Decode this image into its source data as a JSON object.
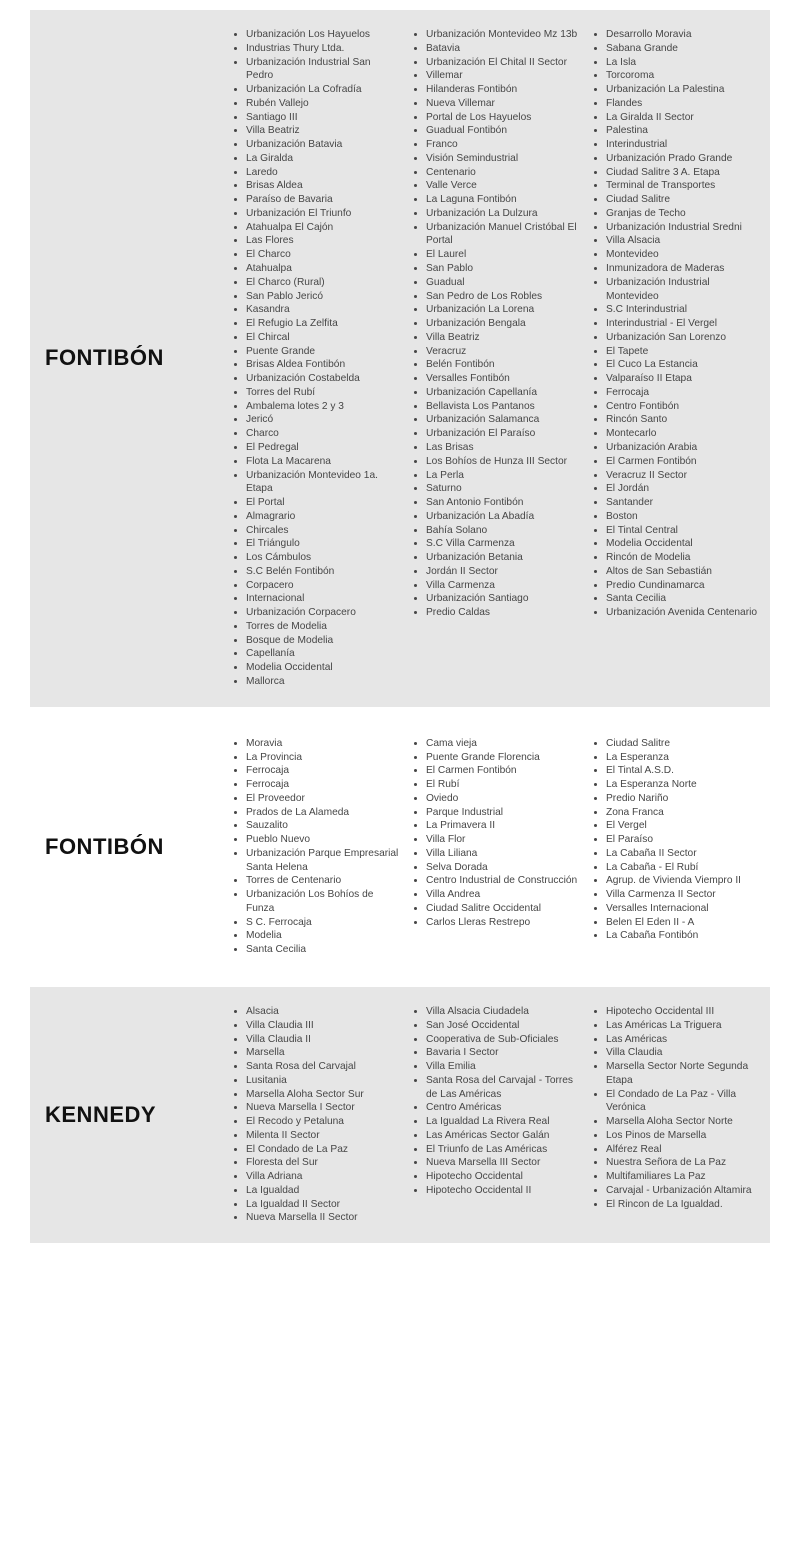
{
  "sections": [
    {
      "title": "FONTIBÓN",
      "shaded": true,
      "columns": [
        [
          "Urbanización Los Hayuelos",
          "Industrias Thury Ltda.",
          "Urbanización Industrial San Pedro",
          "Urbanización La Cofradía",
          "Rubén Vallejo",
          "Santiago III",
          "Villa Beatriz",
          "Urbanización Batavia",
          "La Giralda",
          "Laredo",
          "Brisas Aldea",
          "Paraíso de Bavaria",
          "Urbanización El Triunfo",
          "Atahualpa El Cajón",
          "Las Flores",
          "El Charco",
          "Atahualpa",
          "El Charco (Rural)",
          "San Pablo Jericó",
          "Kasandra",
          "El Refugio La Zelfita",
          "El Chircal",
          "Puente Grande",
          "Brisas Aldea Fontibón",
          "Urbanización Costabelda",
          "Torres del Rubí",
          "Ambalema lotes 2 y 3",
          "Jericó",
          "Charco",
          "El Pedregal",
          "Flota La Macarena",
          "Urbanización Montevideo 1a. Etapa",
          "El Portal",
          "Almagrario",
          "Chircales",
          "El Triángulo",
          "Los Cámbulos",
          "S.C Belén Fontibón",
          "Corpacero",
          "Internacional",
          "Urbanización Corpacero",
          "Torres de Modelia",
          "Bosque de Modelia",
          "Capellanía",
          "Modelia Occidental",
          "Mallorca"
        ],
        [
          "Urbanización Montevideo Mz 13b",
          "Batavia",
          "Urbanización El Chital II Sector",
          "Villemar",
          "Hilanderas Fontibón",
          "Nueva Villemar",
          "Portal de Los Hayuelos",
          "Guadual Fontibón",
          "Franco",
          "Visión Semindustrial",
          "Centenario",
          "Valle Verce",
          "La Laguna Fontibón",
          "Urbanización La Dulzura",
          "Urbanización Manuel Cristóbal El Portal",
          "El Laurel",
          "San Pablo",
          "Guadual",
          "San Pedro de Los Robles",
          "Urbanización La Lorena",
          "Urbanización Bengala",
          "Villa Beatriz",
          "Veracruz",
          "Belén Fontibón",
          "Versalles Fontibón",
          "Urbanización Capellanía",
          "Bellavista Los Pantanos",
          "Urbanización Salamanca",
          "Urbanización El Paraíso",
          "Las Brisas",
          "Los Bohíos de Hunza III Sector",
          "La Perla",
          "Saturno",
          "San Antonio Fontibón",
          "Urbanización La Abadía",
          "Bahía Solano",
          "S.C Villa Carmenza",
          "Urbanización Betania",
          "Jordán II Sector",
          "Villa Carmenza",
          "Urbanización Santiago",
          "Predio Caldas"
        ],
        [
          "Desarrollo Moravia",
          "Sabana Grande",
          "La Isla",
          "Torcoroma",
          "Urbanización La Palestina",
          "Flandes",
          "La Giralda II Sector",
          "Palestina",
          "Interindustrial",
          "Urbanización Prado Grande",
          "Ciudad Salitre 3 A. Etapa",
          "Terminal de Transportes",
          "Ciudad Salitre",
          "Granjas de Techo",
          "Urbanización Industrial Sredni",
          "Villa Alsacia",
          "Montevideo",
          "Inmunizadora de Maderas",
          "Urbanización Industrial Montevideo",
          "S.C Interindustrial",
          "Interindustrial - El Vergel",
          "Urbanización San Lorenzo",
          "El Tapete",
          "El Cuco La Estancia",
          "Valparaíso II Etapa",
          "Ferrocaja",
          "Centro Fontibón",
          "Rincón Santo",
          "Montecarlo",
          "Urbanización Arabia",
          "El Carmen Fontibón",
          "Veracruz II Sector",
          "El Jordán",
          "Santander",
          "Boston",
          "El Tintal Central",
          "Modelia Occidental",
          "Rincón de Modelia",
          "Altos de San Sebastián",
          "Predio Cundinamarca",
          "Santa Cecilia",
          "Urbanización Avenida Centenario"
        ]
      ]
    },
    {
      "title": "FONTIBÓN",
      "shaded": false,
      "columns": [
        [
          "Moravia",
          "La Provincia",
          "Ferrocaja",
          "Ferrocaja",
          "El Proveedor",
          "Prados de La Alameda",
          "Sauzalito",
          "Pueblo Nuevo",
          "Urbanización Parque Empresarial Santa Helena",
          "Torres de Centenario",
          "Urbanización Los Bohíos de Funza",
          "S C. Ferrocaja",
          "Modelia",
          "Santa Cecilia"
        ],
        [
          "Cama vieja",
          "Puente Grande Florencia",
          "El Carmen Fontibón",
          "El Rubí",
          "Oviedo",
          "Parque Industrial",
          "La Primavera II",
          "Villa Flor",
          "Villa Liliana",
          "Selva Dorada",
          "Centro Industrial de Construcción",
          "Villa Andrea",
          "Ciudad Salitre Occidental",
          "Carlos Lleras Restrepo"
        ],
        [
          "Ciudad Salitre",
          "La Esperanza",
          "El Tintal A.S.D.",
          "La Esperanza Norte",
          "Predio Nariño",
          "Zona Franca",
          "El Vergel",
          "El Paraíso",
          "La Cabaña II Sector",
          "La Cabaña - El Rubí",
          "Agrup. de Vivienda Viempro II",
          "Villa Carmenza II Sector",
          "Versalles Internacional",
          "Belen El Eden II - A",
          "La Cabaña Fontibón"
        ]
      ]
    },
    {
      "title": "KENNEDY",
      "shaded": true,
      "columns": [
        [
          "Alsacia",
          "Villa Claudia III",
          "Villa Claudia II",
          "Marsella",
          "Santa Rosa del Carvajal",
          "Lusitania",
          "Marsella Aloha Sector Sur",
          "Nueva Marsella I Sector",
          "El Recodo y Petaluna",
          "Milenta II Sector",
          "El Condado de La Paz",
          "Floresta del Sur",
          "Villa Adriana",
          "La Igualdad",
          "La Igualdad II Sector",
          "Nueva Marsella II Sector"
        ],
        [
          "Villa Alsacia Ciudadela",
          "San José Occidental",
          "Cooperativa de Sub-Oficiales",
          "Bavaria I Sector",
          "Villa Emilia",
          "Santa Rosa del Carvajal - Torres de Las Américas",
          "Centro Américas",
          "La Igualdad La Rivera Real",
          "Las Américas Sector Galán",
          "El Triunfo de Las Américas",
          "Nueva Marsella III Sector",
          "Hipotecho Occidental",
          "Hipotecho Occidental II"
        ],
        [
          "Hipotecho Occidental III",
          "Las Américas La Triguera",
          "Las Américas",
          "Villa Claudia",
          "Marsella Sector Norte Segunda Etapa",
          "El Condado de La Paz - Villa Verónica",
          "Marsella Aloha Sector Norte",
          "Los Pinos de Marsella",
          "Alférez Real",
          "Nuestra Señora de La Paz",
          "Multifamiliares La Paz",
          "Carvajal - Urbanización Altamira",
          "El Rincon de La Igualdad."
        ]
      ]
    }
  ]
}
